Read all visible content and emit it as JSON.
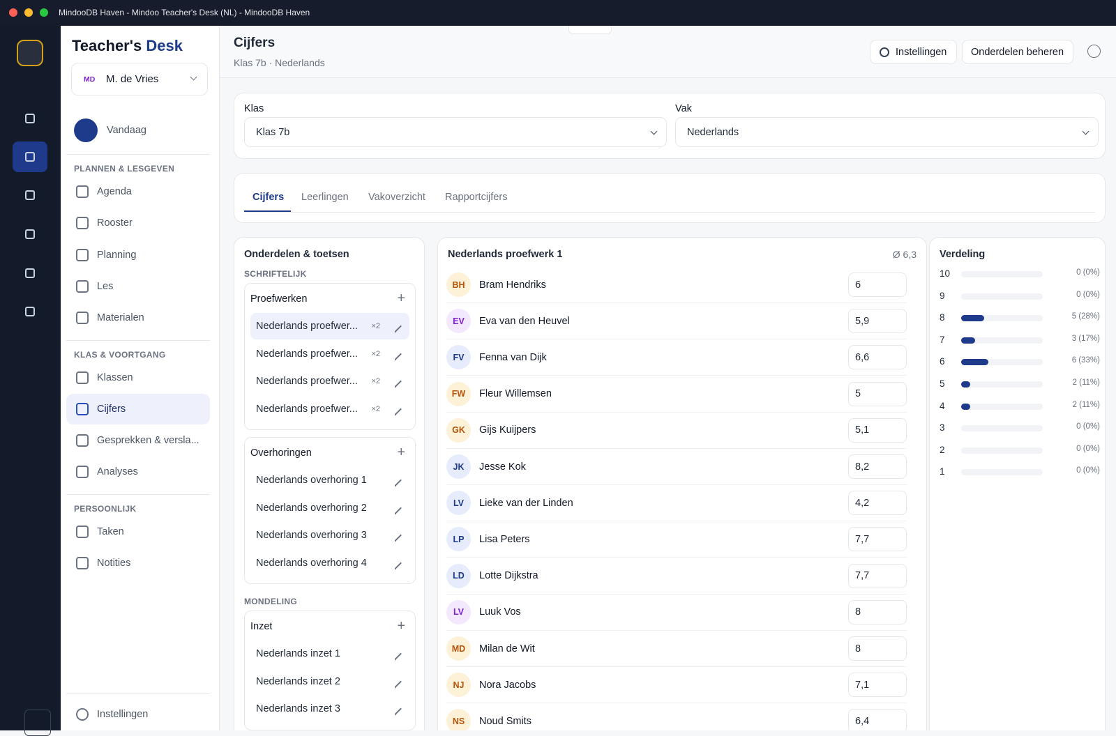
{
  "window": {
    "title": "MindooDB Haven - Mindoo Teacher's Desk (NL) - MindooDB Haven"
  },
  "sidebar": {
    "brand": {
      "part1": "Teacher's",
      "part2": "Desk"
    },
    "user": {
      "initials": "MD",
      "name": "M. de Vries"
    },
    "today": "Vandaag",
    "sections": [
      {
        "title": "PLANNEN & LESGEVEN",
        "items": [
          "Agenda",
          "Rooster",
          "Planning",
          "Les",
          "Materialen"
        ]
      },
      {
        "title": "KLAS & VOORTGANG",
        "items": [
          "Klassen",
          "Cijfers",
          "Gesprekken & versla...",
          "Analyses"
        ]
      },
      {
        "title": "PERSOONLIJK",
        "items": [
          "Taken",
          "Notities"
        ]
      }
    ],
    "footer": "Instellingen"
  },
  "header": {
    "title": "Cijfers",
    "subtitle": "Klas 7b · Nederlands",
    "buttons": [
      "Instellingen",
      "Onderdelen beheren"
    ]
  },
  "filters": [
    {
      "label": "Klas",
      "value": "Klas 7b"
    },
    {
      "label": "Vak",
      "value": "Nederlands"
    }
  ],
  "tabs": [
    "Cijfers",
    "Leerlingen",
    "Vakoverzicht",
    "Rapportcijfers"
  ],
  "onderdelen": {
    "title": "Onderdelen & toetsen",
    "groups": [
      {
        "heading": "SCHRIFTELIJK",
        "cards": [
          {
            "title": "Proefwerken",
            "items": [
              {
                "name": "Nederlands proefwer...",
                "weight": "×2"
              },
              {
                "name": "Nederlands proefwer...",
                "weight": "×2"
              },
              {
                "name": "Nederlands proefwer...",
                "weight": "×2"
              },
              {
                "name": "Nederlands proefwer...",
                "weight": "×2"
              }
            ]
          },
          {
            "title": "Overhoringen",
            "items": [
              {
                "name": "Nederlands overhoring 1"
              },
              {
                "name": "Nederlands overhoring 2"
              },
              {
                "name": "Nederlands overhoring 3"
              },
              {
                "name": "Nederlands overhoring 4"
              }
            ]
          }
        ]
      },
      {
        "heading": "MONDELING",
        "cards": [
          {
            "title": "Inzet",
            "items": [
              {
                "name": "Nederlands inzet 1"
              },
              {
                "name": "Nederlands inzet 2"
              },
              {
                "name": "Nederlands inzet 3"
              }
            ]
          }
        ]
      }
    ]
  },
  "test": {
    "title": "Nederlands proefwerk 1",
    "average": "Ø 6,3",
    "students": [
      {
        "initials": "BH",
        "name": "Bram Hendriks",
        "grade": "6",
        "color": "#fdf1d8"
      },
      {
        "initials": "EV",
        "name": "Eva van den Heuvel",
        "grade": "5,9",
        "color": "#f3e8fd"
      },
      {
        "initials": "FV",
        "name": "Fenna van Dijk",
        "grade": "6,6",
        "color": "#e6ecfb"
      },
      {
        "initials": "FW",
        "name": "Fleur Willemsen",
        "grade": "5",
        "color": "#fdf1d8"
      },
      {
        "initials": "GK",
        "name": "Gijs Kuijpers",
        "grade": "5,1",
        "color": "#fdf1d8"
      },
      {
        "initials": "JK",
        "name": "Jesse Kok",
        "grade": "8,2",
        "color": "#e6ecfb"
      },
      {
        "initials": "LV",
        "name": "Lieke van der Linden",
        "grade": "4,2",
        "color": "#e6ecfb"
      },
      {
        "initials": "LP",
        "name": "Lisa Peters",
        "grade": "7,7",
        "color": "#e6ecfb"
      },
      {
        "initials": "LD",
        "name": "Lotte Dijkstra",
        "grade": "7,7",
        "color": "#e6ecfb"
      },
      {
        "initials": "LV",
        "name": "Luuk Vos",
        "grade": "8",
        "color": "#f3e8fd"
      },
      {
        "initials": "MD",
        "name": "Milan de Wit",
        "grade": "8",
        "color": "#fdf1d8"
      },
      {
        "initials": "NJ",
        "name": "Nora Jacobs",
        "grade": "7,1",
        "color": "#fdf1d8"
      },
      {
        "initials": "NS",
        "name": "Noud Smits",
        "grade": "6,4",
        "color": "#fdf1d8"
      }
    ]
  },
  "distribution": {
    "title": "Verdeling",
    "rows": [
      {
        "grade": "10",
        "count": 0,
        "label": "0 (0%)"
      },
      {
        "grade": "9",
        "count": 0,
        "label": "0 (0%)"
      },
      {
        "grade": "8",
        "count": 5,
        "label": "5 (28%)"
      },
      {
        "grade": "7",
        "count": 3,
        "label": "3 (17%)"
      },
      {
        "grade": "6",
        "count": 6,
        "label": "6 (33%)"
      },
      {
        "grade": "5",
        "count": 2,
        "label": "2 (11%)"
      },
      {
        "grade": "4",
        "count": 2,
        "label": "2 (11%)"
      },
      {
        "grade": "3",
        "count": 0,
        "label": "0 (0%)"
      },
      {
        "grade": "2",
        "count": 0,
        "label": "0 (0%)"
      },
      {
        "grade": "1",
        "count": 0,
        "label": "0 (0%)"
      }
    ]
  }
}
